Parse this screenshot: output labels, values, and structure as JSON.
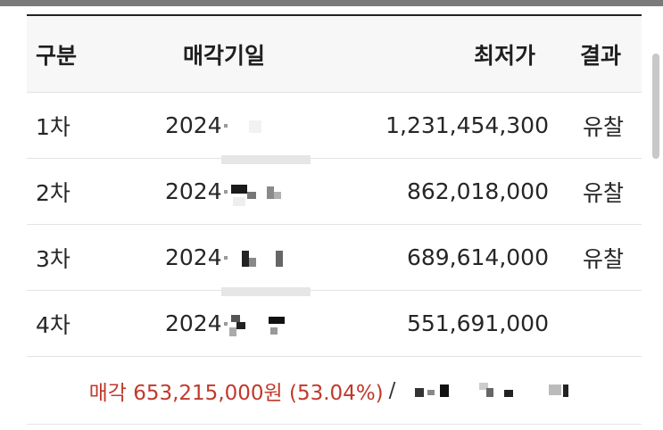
{
  "table": {
    "headers": {
      "round": "구분",
      "date": "매각기일",
      "price": "최저가",
      "result": "결과"
    },
    "rows": [
      {
        "round": "1차",
        "date": "2024",
        "price": "1,231,454,300",
        "result": "유찰"
      },
      {
        "round": "2차",
        "date": "2024",
        "price": "862,018,000",
        "result": "유찰"
      },
      {
        "round": "3차",
        "date": "2024",
        "price": "689,614,000",
        "result": "유찰"
      },
      {
        "round": "4차",
        "date": "2024",
        "price": "551,691,000",
        "result": ""
      }
    ]
  },
  "summary": {
    "sale_text": "매각 653,215,000원 (53.04%)",
    "separator": "/"
  },
  "colors": {
    "accent_red": "#c0392b",
    "header_bg": "#f7f7f7",
    "top_bar": "#7a7a7a"
  }
}
